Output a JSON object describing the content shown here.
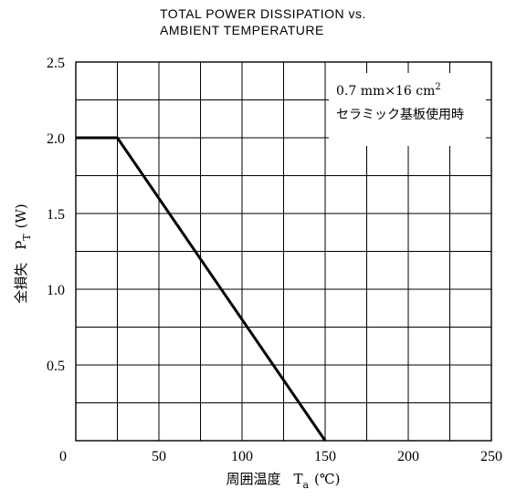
{
  "chart_data": {
    "type": "line",
    "title_line1": "TOTAL POWER DISSIPATION vs.",
    "title_line2": "AMBIENT TEMPERATURE",
    "xlabel_prefix": "周囲温度",
    "xlabel_symbol": "T",
    "xlabel_sub": "a",
    "xlabel_unit": "(℃)",
    "ylabel_prefix": "全損失",
    "ylabel_symbol": "P",
    "ylabel_sub": "T",
    "ylabel_unit": "(W)",
    "xlim": [
      0,
      250
    ],
    "ylim": [
      0,
      2.5
    ],
    "x_ticks": [
      "0",
      "50",
      "100",
      "150",
      "200",
      "250"
    ],
    "x_tick_values": [
      0,
      50,
      100,
      150,
      200,
      250
    ],
    "y_ticks": [
      "2.5",
      "2.0",
      "1.5",
      "1.0",
      "0.5"
    ],
    "y_tick_values": [
      2.5,
      2.0,
      1.5,
      1.0,
      0.5
    ],
    "x_grid_step": 25,
    "y_grid_step": 0.25,
    "grid": true,
    "series": [
      {
        "x": [
          0,
          25,
          150
        ],
        "y": [
          2.0,
          2.0,
          0
        ]
      }
    ],
    "annotation_line1": "0.7 mm×16 cm",
    "annotation_sup": "2",
    "annotation_line2": "セラミック基板使用時"
  }
}
